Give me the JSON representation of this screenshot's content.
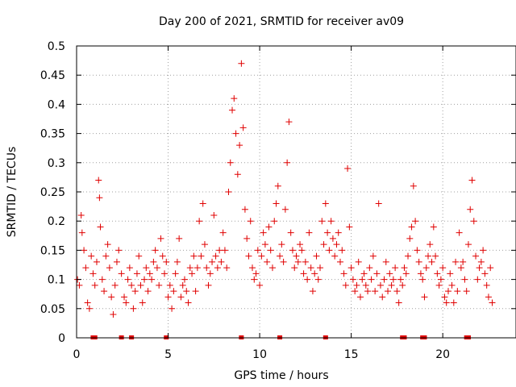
{
  "chart_data": {
    "type": "scatter",
    "title": "Day 200 of 2021, SRMTID for receiver av09",
    "xlabel": "GPS time / hours",
    "ylabel": "SRMTID / TECUs",
    "xlim": [
      0,
      24
    ],
    "ylim": [
      0,
      0.5
    ],
    "x_ticks": [
      0,
      5,
      10,
      15,
      20
    ],
    "x_tick_labels": [
      "0",
      "5",
      "10",
      "15",
      "20"
    ],
    "y_ticks": [
      0,
      0.05,
      0.1,
      0.15,
      0.2,
      0.25,
      0.3,
      0.35,
      0.4,
      0.45,
      0.5
    ],
    "y_tick_labels": [
      "0",
      "0.05",
      "0.1",
      "0.15",
      "0.2",
      "0.25",
      "0.3",
      "0.35",
      "0.4",
      "0.45",
      "0.5"
    ],
    "grid": true,
    "marker": "+",
    "color": "#e00000",
    "series": [
      {
        "name": "SRMTID",
        "x": [
          0.05,
          0.15,
          0.25,
          0.3,
          0.4,
          0.5,
          0.6,
          0.7,
          0.8,
          0.9,
          1.0,
          1.1,
          1.2,
          1.25,
          1.3,
          1.4,
          1.5,
          1.6,
          1.7,
          1.8,
          1.9,
          2.0,
          2.1,
          2.2,
          2.3,
          2.45,
          2.6,
          2.7,
          2.8,
          2.9,
          3.0,
          3.1,
          3.2,
          3.3,
          3.4,
          3.5,
          3.6,
          3.7,
          3.8,
          3.9,
          4.0,
          4.1,
          4.2,
          4.3,
          4.4,
          4.5,
          4.6,
          4.7,
          4.8,
          4.9,
          5.0,
          5.1,
          5.2,
          5.3,
          5.4,
          5.5,
          5.6,
          5.7,
          5.8,
          5.9,
          6.0,
          6.1,
          6.2,
          6.3,
          6.4,
          6.5,
          6.6,
          6.7,
          6.8,
          6.9,
          7.0,
          7.1,
          7.2,
          7.3,
          7.4,
          7.5,
          7.6,
          7.7,
          7.8,
          7.9,
          8.0,
          8.1,
          8.2,
          8.3,
          8.4,
          8.5,
          8.6,
          8.7,
          8.8,
          8.9,
          9.0,
          9.1,
          9.2,
          9.3,
          9.4,
          9.5,
          9.6,
          9.7,
          9.8,
          9.9,
          10.0,
          10.1,
          10.2,
          10.3,
          10.4,
          10.5,
          10.6,
          10.7,
          10.8,
          10.9,
          11.0,
          11.1,
          11.2,
          11.3,
          11.4,
          11.5,
          11.6,
          11.7,
          11.8,
          11.9,
          12.0,
          12.1,
          12.2,
          12.3,
          12.4,
          12.5,
          12.6,
          12.7,
          12.8,
          12.9,
          13.0,
          13.1,
          13.2,
          13.3,
          13.4,
          13.5,
          13.6,
          13.7,
          13.8,
          13.9,
          14.0,
          14.1,
          14.2,
          14.3,
          14.4,
          14.5,
          14.6,
          14.7,
          14.8,
          14.9,
          15.0,
          15.1,
          15.2,
          15.3,
          15.4,
          15.5,
          15.6,
          15.7,
          15.8,
          15.9,
          16.0,
          16.1,
          16.2,
          16.3,
          16.4,
          16.5,
          16.6,
          16.7,
          16.8,
          16.9,
          17.0,
          17.1,
          17.2,
          17.3,
          17.4,
          17.5,
          17.6,
          17.7,
          17.8,
          17.9,
          18.0,
          18.1,
          18.2,
          18.3,
          18.4,
          18.5,
          18.6,
          18.7,
          18.8,
          18.9,
          19.0,
          19.1,
          19.2,
          19.3,
          19.4,
          19.5,
          19.6,
          19.7,
          19.8,
          19.9,
          20.0,
          20.1,
          20.2,
          20.3,
          20.4,
          20.5,
          20.6,
          20.7,
          20.8,
          20.9,
          21.0,
          21.1,
          21.2,
          21.3,
          21.4,
          21.5,
          21.6,
          21.7,
          21.8,
          21.9,
          22.0,
          22.1,
          22.2,
          22.3,
          22.4,
          22.5,
          22.6,
          22.7
        ],
        "y": [
          0.1,
          0.09,
          0.21,
          0.18,
          0.15,
          0.12,
          0.06,
          0.05,
          0.14,
          0.11,
          0.09,
          0.13,
          0.27,
          0.24,
          0.19,
          0.1,
          0.08,
          0.14,
          0.16,
          0.12,
          0.07,
          0.04,
          0.09,
          0.13,
          0.15,
          0.11,
          0.07,
          0.06,
          0.1,
          0.12,
          0.09,
          0.05,
          0.08,
          0.11,
          0.14,
          0.09,
          0.06,
          0.1,
          0.12,
          0.08,
          0.11,
          0.1,
          0.13,
          0.15,
          0.12,
          0.09,
          0.17,
          0.14,
          0.11,
          0.13,
          0.07,
          0.09,
          0.05,
          0.08,
          0.11,
          0.13,
          0.17,
          0.07,
          0.09,
          0.1,
          0.08,
          0.06,
          0.12,
          0.11,
          0.14,
          0.08,
          0.12,
          0.2,
          0.14,
          0.23,
          0.16,
          0.12,
          0.09,
          0.11,
          0.13,
          0.21,
          0.14,
          0.12,
          0.15,
          0.13,
          0.18,
          0.15,
          0.12,
          0.25,
          0.3,
          0.39,
          0.41,
          0.35,
          0.28,
          0.33,
          0.47,
          0.36,
          0.22,
          0.17,
          0.14,
          0.2,
          0.12,
          0.1,
          0.11,
          0.15,
          0.09,
          0.14,
          0.18,
          0.16,
          0.13,
          0.19,
          0.15,
          0.12,
          0.2,
          0.23,
          0.26,
          0.14,
          0.16,
          0.13,
          0.22,
          0.3,
          0.37,
          0.18,
          0.15,
          0.12,
          0.14,
          0.13,
          0.16,
          0.15,
          0.11,
          0.13,
          0.1,
          0.18,
          0.12,
          0.08,
          0.11,
          0.14,
          0.1,
          0.12,
          0.2,
          0.16,
          0.23,
          0.18,
          0.15,
          0.2,
          0.17,
          0.14,
          0.16,
          0.18,
          0.13,
          0.15,
          0.11,
          0.09,
          0.29,
          0.19,
          0.12,
          0.1,
          0.08,
          0.09,
          0.13,
          0.07,
          0.1,
          0.11,
          0.09,
          0.08,
          0.12,
          0.1,
          0.14,
          0.08,
          0.11,
          0.23,
          0.09,
          0.07,
          0.1,
          0.13,
          0.08,
          0.11,
          0.09,
          0.1,
          0.12,
          0.08,
          0.06,
          0.1,
          0.09,
          0.12,
          0.11,
          0.14,
          0.17,
          0.19,
          0.26,
          0.2,
          0.15,
          0.13,
          0.11,
          0.1,
          0.07,
          0.12,
          0.14,
          0.16,
          0.13,
          0.19,
          0.14,
          0.11,
          0.09,
          0.1,
          0.12,
          0.07,
          0.06,
          0.08,
          0.11,
          0.09,
          0.06,
          0.13,
          0.08,
          0.18,
          0.12,
          0.13,
          0.1,
          0.08,
          0.16,
          0.22,
          0.27,
          0.2,
          0.14,
          0.1,
          0.12,
          0.13,
          0.15,
          0.11,
          0.09,
          0.07,
          0.12,
          0.06
        ]
      }
    ],
    "gap_markers_x": [
      0.9,
      1.0,
      2.45,
      3.0,
      4.9,
      9.0,
      11.1,
      13.6,
      17.8,
      17.9,
      18.9,
      19.0,
      21.3,
      21.4
    ]
  }
}
